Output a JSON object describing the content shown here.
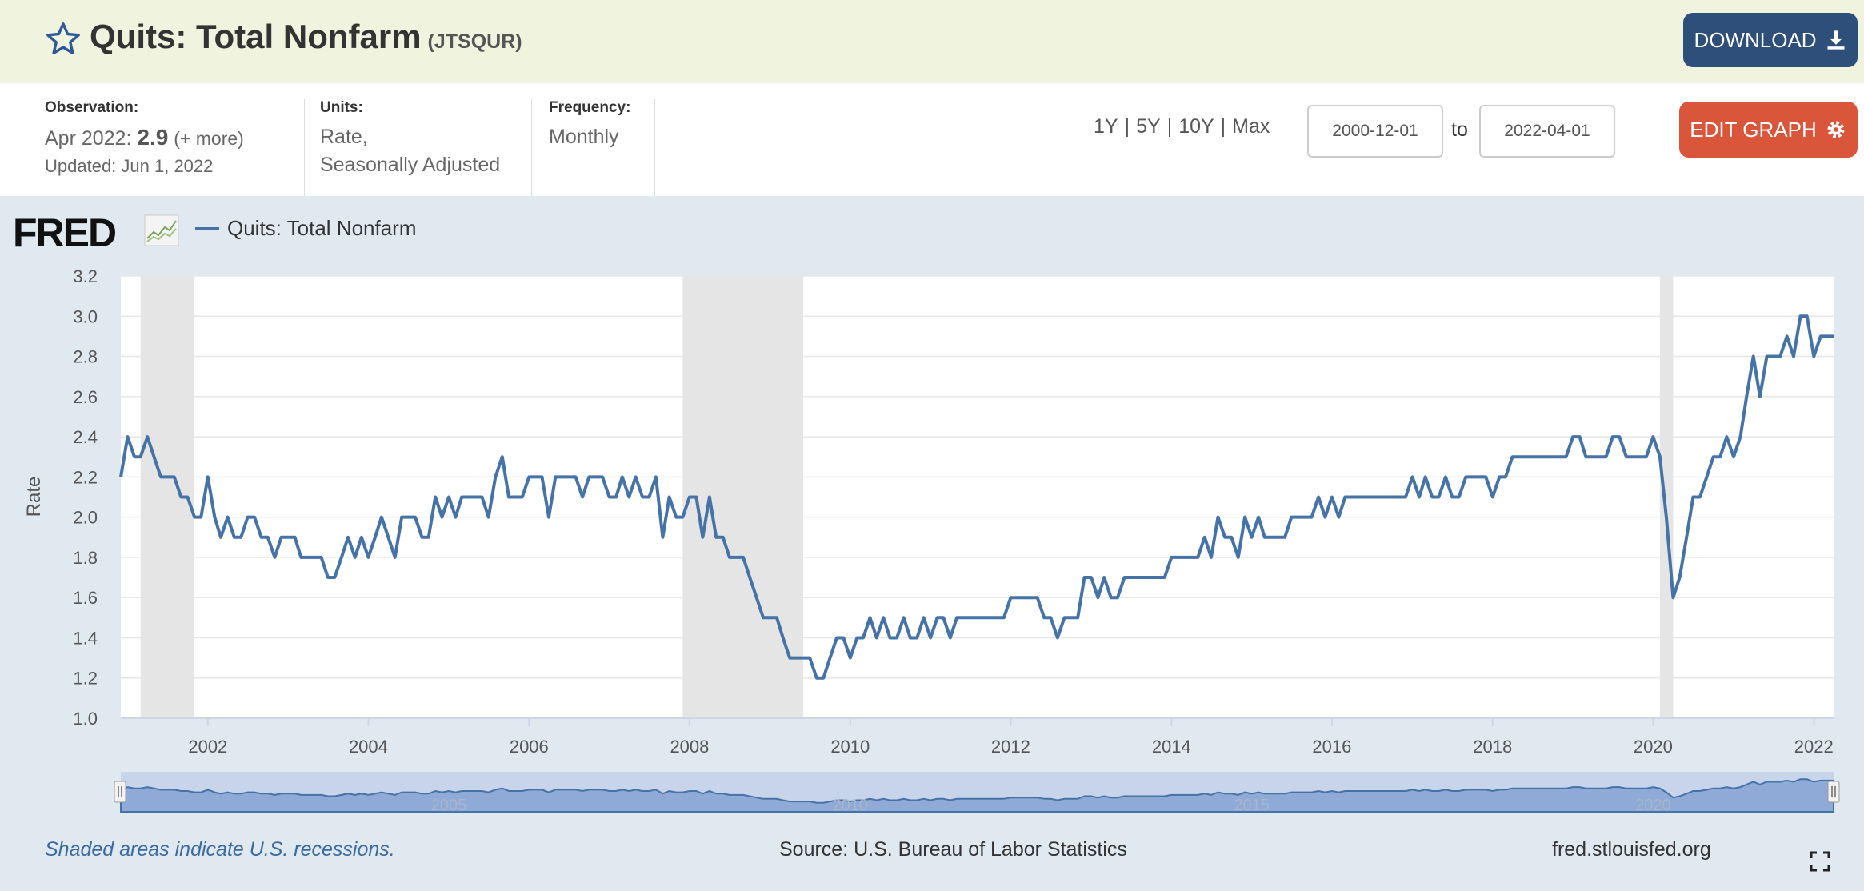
{
  "header": {
    "title": "Quits: Total Nonfarm",
    "series_id": "(JTSQUR)",
    "download_label": "DOWNLOAD",
    "star_icon": "star-icon",
    "download_icon": "download-icon"
  },
  "meta": {
    "observation_label": "Observation:",
    "observation_date": "Apr 2022:",
    "observation_value": "2.9",
    "observation_more": "(+ more)",
    "updated": "Updated: Jun 1, 2022",
    "units_label": "Units:",
    "units_line1": "Rate,",
    "units_line2": "Seasonally Adjusted",
    "frequency_label": "Frequency:",
    "frequency_value": "Monthly"
  },
  "controls": {
    "range_1y": "1Y",
    "range_5y": "5Y",
    "range_10y": "10Y",
    "range_max": "Max",
    "separator": "|",
    "start_date": "2000-12-01",
    "to_label": "to",
    "end_date": "2022-04-01",
    "edit_label": "EDIT GRAPH",
    "edit_icon": "gear-icon"
  },
  "graph": {
    "logo": "FRED",
    "legend_label": "Quits: Total Nonfarm",
    "footer_note": "Shaded areas indicate U.S. recessions.",
    "footer_source": "Source: U.S. Bureau of Labor Statistics",
    "footer_url": "fred.stlouisfed.org",
    "fullscreen_icon": "fullscreen-icon"
  },
  "colors": {
    "series": "#4572a7",
    "recession": "#e5e5e5",
    "navigator_fill": "#8faad6"
  },
  "chart_data": {
    "type": "line",
    "title": "",
    "xlabel": "",
    "ylabel": "Rate",
    "ylim": [
      1.0,
      3.2
    ],
    "xlim": [
      "2000-12-01",
      "2022-04-01"
    ],
    "yticks": [
      "1.0",
      "1.2",
      "1.4",
      "1.6",
      "1.8",
      "2.0",
      "2.2",
      "2.4",
      "2.6",
      "2.8",
      "3.0",
      "3.2"
    ],
    "xticks": [
      "2002",
      "2004",
      "2006",
      "2008",
      "2010",
      "2012",
      "2014",
      "2016",
      "2018",
      "2020",
      "2022"
    ],
    "navigator_labels": [
      "2005",
      "2010",
      "2015",
      "2020"
    ],
    "grid": true,
    "recessions": [
      {
        "start": "2001-03-01",
        "end": "2001-11-01"
      },
      {
        "start": "2007-12-01",
        "end": "2009-06-01"
      },
      {
        "start": "2020-02-01",
        "end": "2020-04-01"
      }
    ],
    "series": [
      {
        "name": "Quits: Total Nonfarm",
        "points": [
          [
            "2000-12-01",
            2.2
          ],
          [
            "2001-01-01",
            2.4
          ],
          [
            "2001-02-01",
            2.3
          ],
          [
            "2001-03-01",
            2.3
          ],
          [
            "2001-04-01",
            2.4
          ],
          [
            "2001-05-01",
            2.3
          ],
          [
            "2001-06-01",
            2.2
          ],
          [
            "2001-07-01",
            2.2
          ],
          [
            "2001-08-01",
            2.2
          ],
          [
            "2001-09-01",
            2.1
          ],
          [
            "2001-10-01",
            2.1
          ],
          [
            "2001-11-01",
            2.0
          ],
          [
            "2001-12-01",
            2.0
          ],
          [
            "2002-01-01",
            2.2
          ],
          [
            "2002-02-01",
            2.0
          ],
          [
            "2002-03-01",
            1.9
          ],
          [
            "2002-04-01",
            2.0
          ],
          [
            "2002-05-01",
            1.9
          ],
          [
            "2002-06-01",
            1.9
          ],
          [
            "2002-07-01",
            2.0
          ],
          [
            "2002-08-01",
            2.0
          ],
          [
            "2002-09-01",
            1.9
          ],
          [
            "2002-10-01",
            1.9
          ],
          [
            "2002-11-01",
            1.8
          ],
          [
            "2002-12-01",
            1.9
          ],
          [
            "2003-01-01",
            1.9
          ],
          [
            "2003-02-01",
            1.9
          ],
          [
            "2003-03-01",
            1.8
          ],
          [
            "2003-04-01",
            1.8
          ],
          [
            "2003-05-01",
            1.8
          ],
          [
            "2003-06-01",
            1.8
          ],
          [
            "2003-07-01",
            1.7
          ],
          [
            "2003-08-01",
            1.7
          ],
          [
            "2003-09-01",
            1.8
          ],
          [
            "2003-10-01",
            1.9
          ],
          [
            "2003-11-01",
            1.8
          ],
          [
            "2003-12-01",
            1.9
          ],
          [
            "2004-01-01",
            1.8
          ],
          [
            "2004-02-01",
            1.9
          ],
          [
            "2004-03-01",
            2.0
          ],
          [
            "2004-04-01",
            1.9
          ],
          [
            "2004-05-01",
            1.8
          ],
          [
            "2004-06-01",
            2.0
          ],
          [
            "2004-07-01",
            2.0
          ],
          [
            "2004-08-01",
            2.0
          ],
          [
            "2004-09-01",
            1.9
          ],
          [
            "2004-10-01",
            1.9
          ],
          [
            "2004-11-01",
            2.1
          ],
          [
            "2004-12-01",
            2.0
          ],
          [
            "2005-01-01",
            2.1
          ],
          [
            "2005-02-01",
            2.0
          ],
          [
            "2005-03-01",
            2.1
          ],
          [
            "2005-04-01",
            2.1
          ],
          [
            "2005-05-01",
            2.1
          ],
          [
            "2005-06-01",
            2.1
          ],
          [
            "2005-07-01",
            2.0
          ],
          [
            "2005-08-01",
            2.2
          ],
          [
            "2005-09-01",
            2.3
          ],
          [
            "2005-10-01",
            2.1
          ],
          [
            "2005-11-01",
            2.1
          ],
          [
            "2005-12-01",
            2.1
          ],
          [
            "2006-01-01",
            2.2
          ],
          [
            "2006-02-01",
            2.2
          ],
          [
            "2006-03-01",
            2.2
          ],
          [
            "2006-04-01",
            2.0
          ],
          [
            "2006-05-01",
            2.2
          ],
          [
            "2006-06-01",
            2.2
          ],
          [
            "2006-07-01",
            2.2
          ],
          [
            "2006-08-01",
            2.2
          ],
          [
            "2006-09-01",
            2.1
          ],
          [
            "2006-10-01",
            2.2
          ],
          [
            "2006-11-01",
            2.2
          ],
          [
            "2006-12-01",
            2.2
          ],
          [
            "2007-01-01",
            2.1
          ],
          [
            "2007-02-01",
            2.1
          ],
          [
            "2007-03-01",
            2.2
          ],
          [
            "2007-04-01",
            2.1
          ],
          [
            "2007-05-01",
            2.2
          ],
          [
            "2007-06-01",
            2.1
          ],
          [
            "2007-07-01",
            2.1
          ],
          [
            "2007-08-01",
            2.2
          ],
          [
            "2007-09-01",
            1.9
          ],
          [
            "2007-10-01",
            2.1
          ],
          [
            "2007-11-01",
            2.0
          ],
          [
            "2007-12-01",
            2.0
          ],
          [
            "2008-01-01",
            2.1
          ],
          [
            "2008-02-01",
            2.1
          ],
          [
            "2008-03-01",
            1.9
          ],
          [
            "2008-04-01",
            2.1
          ],
          [
            "2008-05-01",
            1.9
          ],
          [
            "2008-06-01",
            1.9
          ],
          [
            "2008-07-01",
            1.8
          ],
          [
            "2008-08-01",
            1.8
          ],
          [
            "2008-09-01",
            1.8
          ],
          [
            "2008-10-01",
            1.7
          ],
          [
            "2008-11-01",
            1.6
          ],
          [
            "2008-12-01",
            1.5
          ],
          [
            "2009-01-01",
            1.5
          ],
          [
            "2009-02-01",
            1.5
          ],
          [
            "2009-03-01",
            1.4
          ],
          [
            "2009-04-01",
            1.3
          ],
          [
            "2009-05-01",
            1.3
          ],
          [
            "2009-06-01",
            1.3
          ],
          [
            "2009-07-01",
            1.3
          ],
          [
            "2009-08-01",
            1.2
          ],
          [
            "2009-09-01",
            1.2
          ],
          [
            "2009-10-01",
            1.3
          ],
          [
            "2009-11-01",
            1.4
          ],
          [
            "2009-12-01",
            1.4
          ],
          [
            "2010-01-01",
            1.3
          ],
          [
            "2010-02-01",
            1.4
          ],
          [
            "2010-03-01",
            1.4
          ],
          [
            "2010-04-01",
            1.5
          ],
          [
            "2010-05-01",
            1.4
          ],
          [
            "2010-06-01",
            1.5
          ],
          [
            "2010-07-01",
            1.4
          ],
          [
            "2010-08-01",
            1.4
          ],
          [
            "2010-09-01",
            1.5
          ],
          [
            "2010-10-01",
            1.4
          ],
          [
            "2010-11-01",
            1.4
          ],
          [
            "2010-12-01",
            1.5
          ],
          [
            "2011-01-01",
            1.4
          ],
          [
            "2011-02-01",
            1.5
          ],
          [
            "2011-03-01",
            1.5
          ],
          [
            "2011-04-01",
            1.4
          ],
          [
            "2011-05-01",
            1.5
          ],
          [
            "2011-06-01",
            1.5
          ],
          [
            "2011-07-01",
            1.5
          ],
          [
            "2011-08-01",
            1.5
          ],
          [
            "2011-09-01",
            1.5
          ],
          [
            "2011-10-01",
            1.5
          ],
          [
            "2011-11-01",
            1.5
          ],
          [
            "2011-12-01",
            1.5
          ],
          [
            "2012-01-01",
            1.6
          ],
          [
            "2012-02-01",
            1.6
          ],
          [
            "2012-03-01",
            1.6
          ],
          [
            "2012-04-01",
            1.6
          ],
          [
            "2012-05-01",
            1.6
          ],
          [
            "2012-06-01",
            1.5
          ],
          [
            "2012-07-01",
            1.5
          ],
          [
            "2012-08-01",
            1.4
          ],
          [
            "2012-09-01",
            1.5
          ],
          [
            "2012-10-01",
            1.5
          ],
          [
            "2012-11-01",
            1.5
          ],
          [
            "2012-12-01",
            1.7
          ],
          [
            "2013-01-01",
            1.7
          ],
          [
            "2013-02-01",
            1.6
          ],
          [
            "2013-03-01",
            1.7
          ],
          [
            "2013-04-01",
            1.6
          ],
          [
            "2013-05-01",
            1.6
          ],
          [
            "2013-06-01",
            1.7
          ],
          [
            "2013-07-01",
            1.7
          ],
          [
            "2013-08-01",
            1.7
          ],
          [
            "2013-09-01",
            1.7
          ],
          [
            "2013-10-01",
            1.7
          ],
          [
            "2013-11-01",
            1.7
          ],
          [
            "2013-12-01",
            1.7
          ],
          [
            "2014-01-01",
            1.8
          ],
          [
            "2014-02-01",
            1.8
          ],
          [
            "2014-03-01",
            1.8
          ],
          [
            "2014-04-01",
            1.8
          ],
          [
            "2014-05-01",
            1.8
          ],
          [
            "2014-06-01",
            1.9
          ],
          [
            "2014-07-01",
            1.8
          ],
          [
            "2014-08-01",
            2.0
          ],
          [
            "2014-09-01",
            1.9
          ],
          [
            "2014-10-01",
            1.9
          ],
          [
            "2014-11-01",
            1.8
          ],
          [
            "2014-12-01",
            2.0
          ],
          [
            "2015-01-01",
            1.9
          ],
          [
            "2015-02-01",
            2.0
          ],
          [
            "2015-03-01",
            1.9
          ],
          [
            "2015-04-01",
            1.9
          ],
          [
            "2015-05-01",
            1.9
          ],
          [
            "2015-06-01",
            1.9
          ],
          [
            "2015-07-01",
            2.0
          ],
          [
            "2015-08-01",
            2.0
          ],
          [
            "2015-09-01",
            2.0
          ],
          [
            "2015-10-01",
            2.0
          ],
          [
            "2015-11-01",
            2.1
          ],
          [
            "2015-12-01",
            2.0
          ],
          [
            "2016-01-01",
            2.1
          ],
          [
            "2016-02-01",
            2.0
          ],
          [
            "2016-03-01",
            2.1
          ],
          [
            "2016-04-01",
            2.1
          ],
          [
            "2016-05-01",
            2.1
          ],
          [
            "2016-06-01",
            2.1
          ],
          [
            "2016-07-01",
            2.1
          ],
          [
            "2016-08-01",
            2.1
          ],
          [
            "2016-09-01",
            2.1
          ],
          [
            "2016-10-01",
            2.1
          ],
          [
            "2016-11-01",
            2.1
          ],
          [
            "2016-12-01",
            2.1
          ],
          [
            "2017-01-01",
            2.2
          ],
          [
            "2017-02-01",
            2.1
          ],
          [
            "2017-03-01",
            2.2
          ],
          [
            "2017-04-01",
            2.1
          ],
          [
            "2017-05-01",
            2.1
          ],
          [
            "2017-06-01",
            2.2
          ],
          [
            "2017-07-01",
            2.1
          ],
          [
            "2017-08-01",
            2.1
          ],
          [
            "2017-09-01",
            2.2
          ],
          [
            "2017-10-01",
            2.2
          ],
          [
            "2017-11-01",
            2.2
          ],
          [
            "2017-12-01",
            2.2
          ],
          [
            "2018-01-01",
            2.1
          ],
          [
            "2018-02-01",
            2.2
          ],
          [
            "2018-03-01",
            2.2
          ],
          [
            "2018-04-01",
            2.3
          ],
          [
            "2018-05-01",
            2.3
          ],
          [
            "2018-06-01",
            2.3
          ],
          [
            "2018-07-01",
            2.3
          ],
          [
            "2018-08-01",
            2.3
          ],
          [
            "2018-09-01",
            2.3
          ],
          [
            "2018-10-01",
            2.3
          ],
          [
            "2018-11-01",
            2.3
          ],
          [
            "2018-12-01",
            2.3
          ],
          [
            "2019-01-01",
            2.4
          ],
          [
            "2019-02-01",
            2.4
          ],
          [
            "2019-03-01",
            2.3
          ],
          [
            "2019-04-01",
            2.3
          ],
          [
            "2019-05-01",
            2.3
          ],
          [
            "2019-06-01",
            2.3
          ],
          [
            "2019-07-01",
            2.4
          ],
          [
            "2019-08-01",
            2.4
          ],
          [
            "2019-09-01",
            2.3
          ],
          [
            "2019-10-01",
            2.3
          ],
          [
            "2019-11-01",
            2.3
          ],
          [
            "2019-12-01",
            2.3
          ],
          [
            "2020-01-01",
            2.4
          ],
          [
            "2020-02-01",
            2.3
          ],
          [
            "2020-03-01",
            2.0
          ],
          [
            "2020-04-01",
            1.6
          ],
          [
            "2020-05-01",
            1.7
          ],
          [
            "2020-06-01",
            1.9
          ],
          [
            "2020-07-01",
            2.1
          ],
          [
            "2020-08-01",
            2.1
          ],
          [
            "2020-09-01",
            2.2
          ],
          [
            "2020-10-01",
            2.3
          ],
          [
            "2020-11-01",
            2.3
          ],
          [
            "2020-12-01",
            2.4
          ],
          [
            "2021-01-01",
            2.3
          ],
          [
            "2021-02-01",
            2.4
          ],
          [
            "2021-03-01",
            2.6
          ],
          [
            "2021-04-01",
            2.8
          ],
          [
            "2021-05-01",
            2.6
          ],
          [
            "2021-06-01",
            2.8
          ],
          [
            "2021-07-01",
            2.8
          ],
          [
            "2021-08-01",
            2.8
          ],
          [
            "2021-09-01",
            2.9
          ],
          [
            "2021-10-01",
            2.8
          ],
          [
            "2021-11-01",
            3.0
          ],
          [
            "2021-12-01",
            3.0
          ],
          [
            "2022-01-01",
            2.8
          ],
          [
            "2022-02-01",
            2.9
          ],
          [
            "2022-03-01",
            2.9
          ],
          [
            "2022-04-01",
            2.9
          ]
        ]
      }
    ]
  }
}
